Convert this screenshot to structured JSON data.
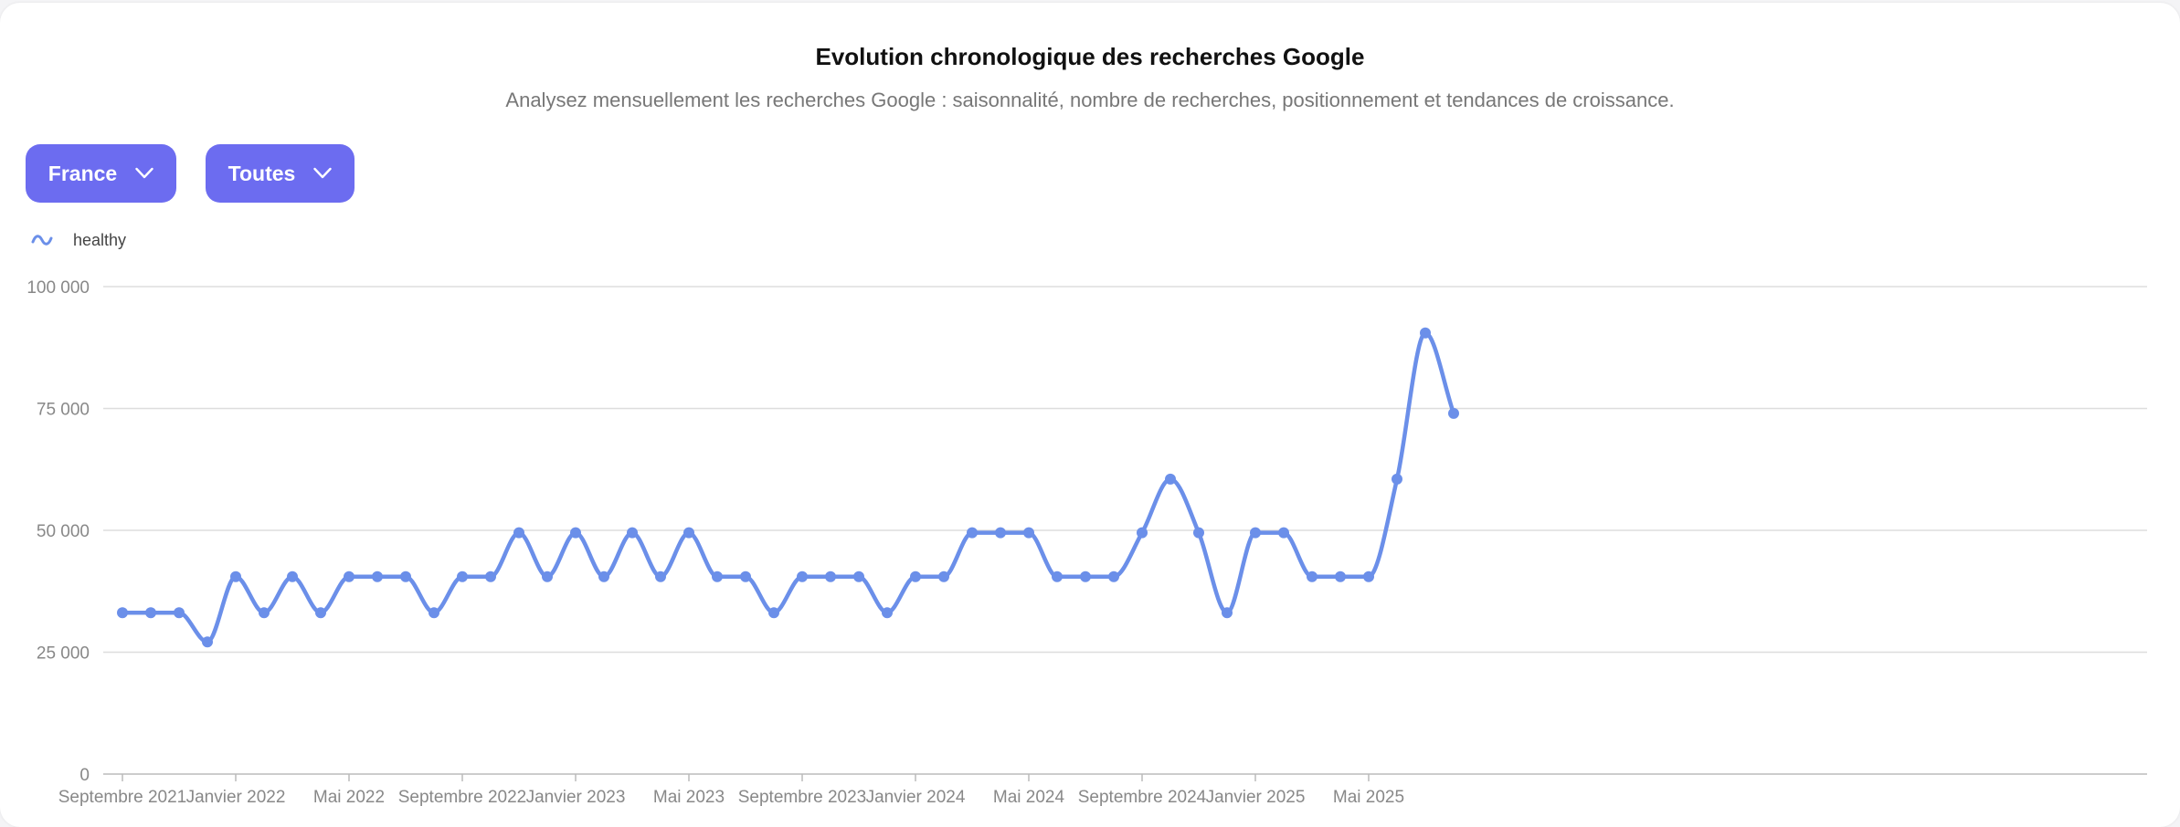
{
  "header": {
    "title": "Evolution chronologique des recherches Google",
    "subtitle": "Analysez mensuellement les recherches Google : saisonnalité, nombre de recherches, positionnement et tendances de croissance."
  },
  "filters": {
    "country": "France",
    "type": "Toutes"
  },
  "colors": {
    "series": "#6b8fe9",
    "button": "#6c6cf0",
    "grid": "#dddddd"
  },
  "icons": {
    "dropdown": "chevron-down-icon",
    "legend": "wave-icon"
  },
  "chart_data": {
    "type": "line",
    "legend_position": "top-left",
    "grid": true,
    "ylim": [
      0,
      100000
    ],
    "yticks": [
      {
        "value": 0,
        "label": "0"
      },
      {
        "value": 25000,
        "label": "25 000"
      },
      {
        "value": 50000,
        "label": "50 000"
      },
      {
        "value": 75000,
        "label": "75 000"
      },
      {
        "value": 100000,
        "label": "100 000"
      }
    ],
    "x": [
      "2021-09",
      "2021-10",
      "2021-11",
      "2021-12",
      "2022-01",
      "2022-02",
      "2022-03",
      "2022-04",
      "2022-05",
      "2022-06",
      "2022-07",
      "2022-08",
      "2022-09",
      "2022-10",
      "2022-11",
      "2022-12",
      "2023-01",
      "2023-02",
      "2023-03",
      "2023-04",
      "2023-05",
      "2023-06",
      "2023-07",
      "2023-08",
      "2023-09",
      "2023-10",
      "2023-11",
      "2023-12",
      "2024-01",
      "2024-02",
      "2024-03",
      "2024-04",
      "2024-05",
      "2024-06",
      "2024-07",
      "2024-08",
      "2024-09",
      "2024-10",
      "2024-11",
      "2024-12",
      "2025-01",
      "2025-02",
      "2025-03",
      "2025-04",
      "2025-05",
      "2025-06",
      "2025-07",
      "2025-08"
    ],
    "xticks": [
      {
        "value": "2021-09",
        "label": "Septembre 2021"
      },
      {
        "value": "2022-01",
        "label": "Janvier 2022"
      },
      {
        "value": "2022-05",
        "label": "Mai 2022"
      },
      {
        "value": "2022-09",
        "label": "Septembre 2022"
      },
      {
        "value": "2023-01",
        "label": "Janvier 2023"
      },
      {
        "value": "2023-05",
        "label": "Mai 2023"
      },
      {
        "value": "2023-09",
        "label": "Septembre 2023"
      },
      {
        "value": "2024-01",
        "label": "Janvier 2024"
      },
      {
        "value": "2024-05",
        "label": "Mai 2024"
      },
      {
        "value": "2024-09",
        "label": "Septembre 2024"
      },
      {
        "value": "2025-01",
        "label": "Janvier 2025"
      },
      {
        "value": "2025-05",
        "label": "Mai 2025"
      }
    ],
    "series": [
      {
        "name": "healthy",
        "values": [
          33100,
          33100,
          33100,
          27100,
          40500,
          33100,
          40500,
          33100,
          40500,
          40500,
          40500,
          33100,
          40500,
          40500,
          49500,
          40500,
          49500,
          40500,
          49500,
          40500,
          49500,
          40500,
          40500,
          33100,
          40500,
          40500,
          40500,
          33100,
          40500,
          40500,
          49500,
          49500,
          49500,
          40500,
          40500,
          40500,
          49500,
          60500,
          49500,
          33100,
          49500,
          49500,
          40500,
          40500,
          40500,
          60500,
          90500,
          74000
        ]
      }
    ]
  }
}
